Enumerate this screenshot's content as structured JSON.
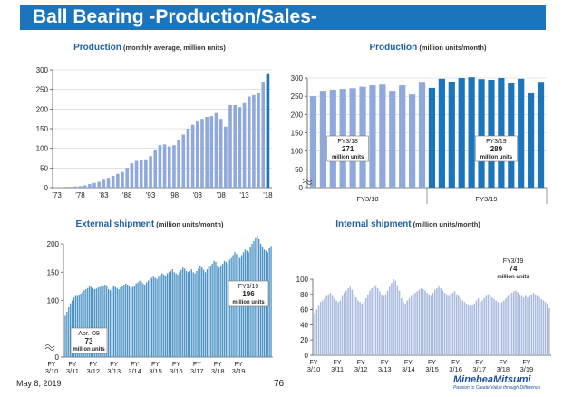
{
  "header": {
    "title": "Ball Bearing -Production/Sales-"
  },
  "footer": {
    "date": "May 8, 2019",
    "page": "76",
    "logo_name": "MinebeaMitsumi",
    "logo_tagline": "Passion to Create Value through Difference"
  },
  "colors": {
    "bar_light": "#8fa9dc",
    "bar_dark": "#1b75bc",
    "bar_mid": "#4d94c4",
    "bar_internal": "#a9badf",
    "title_bar": "#1b75bc",
    "title_text": "#1f5fa6"
  },
  "chart_data": [
    {
      "type": "bar",
      "title": "Production",
      "subtitle": "(monthly average, million units)",
      "ylim": [
        0,
        300
      ],
      "yticks": [
        0,
        50,
        100,
        150,
        200,
        250,
        300
      ],
      "xlabels": [
        "'73",
        "'78",
        "'83",
        "'88",
        "'93",
        "'98",
        "'03",
        "'08",
        "'13",
        "'18"
      ],
      "years": [
        1973,
        1974,
        1975,
        1976,
        1977,
        1978,
        1979,
        1980,
        1981,
        1982,
        1983,
        1984,
        1985,
        1986,
        1987,
        1988,
        1989,
        1990,
        1991,
        1992,
        1993,
        1994,
        1995,
        1996,
        1997,
        1998,
        1999,
        2000,
        2001,
        2002,
        2003,
        2004,
        2005,
        2006,
        2007,
        2008,
        2009,
        2010,
        2011,
        2012,
        2013,
        2014,
        2015,
        2016,
        2017,
        2018
      ],
      "values": [
        1,
        1,
        2,
        2,
        3,
        4,
        6,
        9,
        12,
        15,
        20,
        25,
        30,
        35,
        40,
        50,
        62,
        68,
        70,
        72,
        80,
        95,
        108,
        110,
        105,
        108,
        120,
        135,
        150,
        160,
        168,
        175,
        180,
        182,
        190,
        175,
        155,
        210,
        210,
        205,
        215,
        232,
        236,
        240,
        270,
        289
      ]
    },
    {
      "type": "bar",
      "title": "Production",
      "subtitle": "(million units/month)",
      "ylim": [
        0,
        300
      ],
      "yticks": [
        0,
        50,
        100,
        150,
        200,
        250,
        300
      ],
      "axis_break": true,
      "groups": [
        {
          "label": "FY3/18",
          "values": [
            250,
            265,
            268,
            270,
            272,
            276,
            280,
            282,
            265,
            280,
            255,
            287
          ],
          "callout_period": "FY3/18",
          "callout_value": "271",
          "callout_unit": "million units"
        },
        {
          "label": "FY3/19",
          "values": [
            273,
            298,
            290,
            300,
            302,
            297,
            295,
            300,
            285,
            298,
            258,
            287
          ],
          "callout_period": "FY3/19",
          "callout_value": "289",
          "callout_unit": "million units"
        }
      ]
    },
    {
      "type": "bar",
      "title": "External shipment",
      "subtitle": "(million units/month)",
      "ylim": [
        0,
        200
      ],
      "yticks": [
        0,
        100,
        150,
        200
      ],
      "axis_break": true,
      "xlabels": [
        [
          "FY",
          "3/10"
        ],
        [
          "FY",
          "3/11"
        ],
        [
          "FY",
          "3/12"
        ],
        [
          "FY",
          "3/13"
        ],
        [
          "FY",
          "3/14"
        ],
        [
          "FY",
          "3/15"
        ],
        [
          "FY",
          "3/16"
        ],
        [
          "FY",
          "3/17"
        ],
        [
          "FY",
          "3/18"
        ],
        [
          "FY",
          "3/19"
        ]
      ],
      "callouts": [
        {
          "period": "Apr. '09",
          "value": "73",
          "unit": "million units"
        },
        {
          "period": "FY3/19",
          "value": "196",
          "unit": "million units"
        }
      ],
      "monthly_by_fiscal_year": [
        [
          73,
          80,
          88,
          95,
          100,
          105,
          108,
          108,
          110,
          112,
          115,
          118
        ],
        [
          120,
          122,
          125,
          124,
          122,
          120,
          121,
          123,
          124,
          125,
          126,
          128
        ],
        [
          125,
          120,
          118,
          122,
          125,
          124,
          122,
          120,
          123,
          126,
          128,
          130
        ],
        [
          128,
          125,
          122,
          124,
          126,
          130,
          132,
          135,
          133,
          130,
          128,
          132
        ],
        [
          135,
          138,
          140,
          142,
          140,
          138,
          142,
          145,
          148,
          146,
          144,
          148
        ],
        [
          150,
          152,
          155,
          150,
          148,
          146,
          150,
          154,
          158,
          156,
          152,
          150
        ],
        [
          152,
          155,
          150,
          148,
          152,
          156,
          160,
          158,
          154,
          150,
          155,
          160
        ],
        [
          160,
          165,
          170,
          168,
          162,
          158,
          160,
          165,
          170,
          168,
          165,
          172
        ],
        [
          175,
          180,
          185,
          182,
          178,
          175,
          180,
          185,
          190,
          188,
          185,
          195
        ],
        [
          200,
          205,
          210,
          215,
          208,
          200,
          195,
          190,
          188,
          185,
          192,
          196
        ]
      ]
    },
    {
      "type": "bar",
      "title": "Internal shipment",
      "subtitle": "(million units/month)",
      "ylim": [
        0,
        100
      ],
      "yticks": [
        0,
        20,
        40,
        60,
        80,
        100
      ],
      "xlabels": [
        [
          "FY",
          "3/10"
        ],
        [
          "FY",
          "3/11"
        ],
        [
          "FY",
          "3/12"
        ],
        [
          "FY",
          "3/13"
        ],
        [
          "FY",
          "3/14"
        ],
        [
          "FY",
          "3/15"
        ],
        [
          "FY",
          "3/16"
        ],
        [
          "FY",
          "3/17"
        ],
        [
          "FY",
          "3/18"
        ],
        [
          "FY",
          "3/19"
        ]
      ],
      "callouts": [
        {
          "period": "FY3/19",
          "value": "74",
          "unit": "million units"
        }
      ],
      "monthly_by_fiscal_year": [
        [
          55,
          60,
          65,
          70,
          72,
          75,
          78,
          80,
          82,
          78,
          75,
          72
        ],
        [
          70,
          72,
          78,
          82,
          85,
          88,
          90,
          86,
          80,
          76,
          72,
          70
        ],
        [
          68,
          70,
          75,
          80,
          85,
          88,
          90,
          92,
          88,
          84,
          80,
          78
        ],
        [
          80,
          85,
          90,
          95,
          100,
          98,
          92,
          85,
          75,
          70,
          68,
          72
        ],
        [
          75,
          78,
          80,
          82,
          84,
          86,
          88,
          87,
          85,
          82,
          80,
          78
        ],
        [
          82,
          86,
          88,
          90,
          88,
          85,
          82,
          80,
          78,
          80,
          82,
          84
        ],
        [
          80,
          78,
          75,
          72,
          70,
          68,
          66,
          65,
          66,
          68,
          72,
          75
        ],
        [
          70,
          72,
          75,
          78,
          80,
          78,
          76,
          74,
          72,
          70,
          68,
          70
        ],
        [
          72,
          75,
          78,
          80,
          82,
          84,
          85,
          83,
          80,
          78,
          76,
          78
        ],
        [
          76,
          78,
          80,
          82,
          80,
          78,
          76,
          74,
          72,
          70,
          68,
          62
        ]
      ]
    }
  ]
}
